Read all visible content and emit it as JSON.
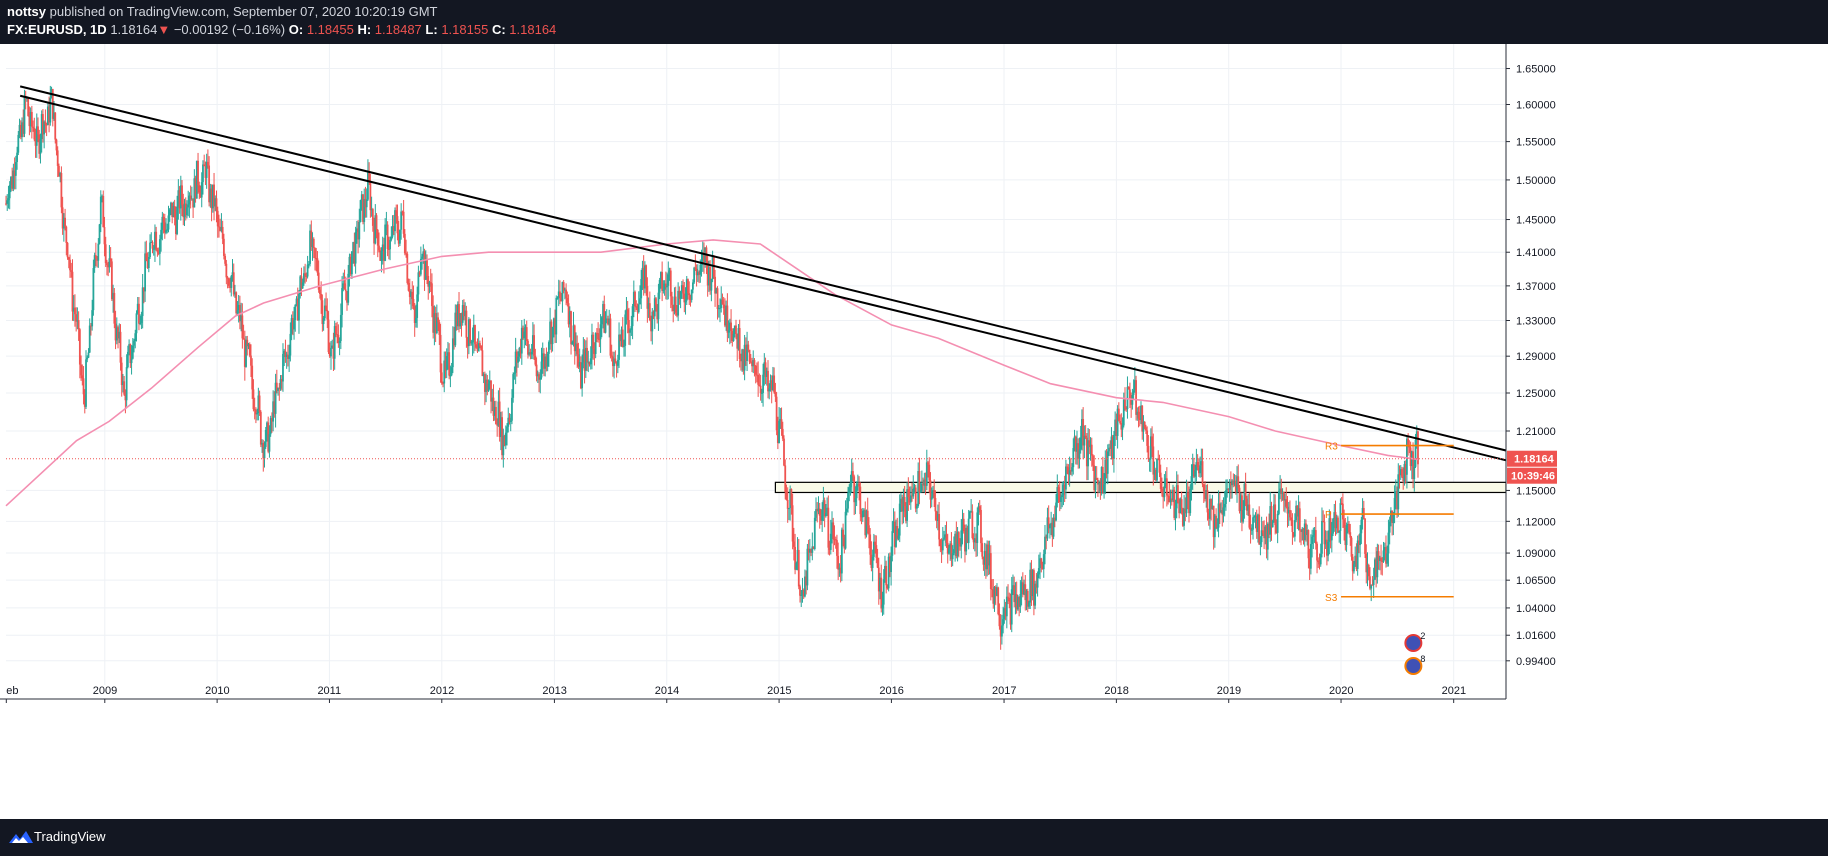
{
  "header": {
    "author": "nottsy",
    "published": "published on TradingView.com, September 07, 2020 10:20:19 GMT",
    "symbol": "FX:EURUSD, 1D",
    "last": "1.18164",
    "change_arrow": "▼",
    "change": "−0.00192 (−0.16%)",
    "o_label": "O:",
    "o_value": "1.18455",
    "h_label": "H:",
    "h_value": "1.18487",
    "l_label": "L:",
    "l_value": "1.18155",
    "c_label": "C:",
    "c_value": "1.18164"
  },
  "footer": {
    "brand": "TradingView",
    "logo_icon": "tradingview-logo-icon"
  },
  "colors": {
    "background_dark": "#131722",
    "up_candle": "#26a69a",
    "down_candle": "#ef5350",
    "moving_average": "#f48fb1",
    "pivot_lines": "#f57c00",
    "trendline": "#000000",
    "price_label_bg": "#ef5350"
  },
  "chart_data": {
    "type": "candlestick",
    "symbol": "FX:EURUSD",
    "interval": "1D",
    "y_scale": "log",
    "ylim": [
      0.982,
      1.685
    ],
    "xlim": [
      "2008-02-15",
      "2021-06-20"
    ],
    "grid": true,
    "x_ticks": [
      "eb",
      "2009",
      "2010",
      "2011",
      "2012",
      "2013",
      "2014",
      "2015",
      "2016",
      "2017",
      "2018",
      "2019",
      "2020",
      "2021"
    ],
    "x_tick_dates": [
      "2008-02-16",
      "2009-01-01",
      "2010-01-01",
      "2011-01-01",
      "2012-01-01",
      "2013-01-01",
      "2014-01-01",
      "2015-01-01",
      "2016-01-01",
      "2017-01-01",
      "2018-01-01",
      "2019-01-01",
      "2020-01-01",
      "2021-01-01"
    ],
    "y_ticks": [
      "1.65000",
      "1.60000",
      "1.55000",
      "1.50000",
      "1.45000",
      "1.41000",
      "1.37000",
      "1.33000",
      "1.29000",
      "1.25000",
      "1.21000",
      "1.15000",
      "1.12000",
      "1.09000",
      "1.06500",
      "1.04000",
      "1.01600",
      "0.99400"
    ],
    "price_path": [
      [
        "2008-02-15",
        1.47
      ],
      [
        "2008-04-22",
        1.6
      ],
      [
        "2008-05-20",
        1.55
      ],
      [
        "2008-07-15",
        1.6
      ],
      [
        "2008-08-15",
        1.47
      ],
      [
        "2008-10-27",
        1.24
      ],
      [
        "2008-12-18",
        1.47
      ],
      [
        "2009-03-04",
        1.25
      ],
      [
        "2009-06-01",
        1.42
      ],
      [
        "2009-11-25",
        1.51
      ],
      [
        "2010-06-07",
        1.19
      ],
      [
        "2010-11-04",
        1.42
      ],
      [
        "2011-01-10",
        1.29
      ],
      [
        "2011-05-04",
        1.49
      ],
      [
        "2011-06-15",
        1.41
      ],
      [
        "2011-08-26",
        1.45
      ],
      [
        "2011-10-04",
        1.32
      ],
      [
        "2011-10-27",
        1.42
      ],
      [
        "2012-01-13",
        1.26
      ],
      [
        "2012-02-29",
        1.35
      ],
      [
        "2012-07-24",
        1.2
      ],
      [
        "2012-09-17",
        1.32
      ],
      [
        "2012-11-13",
        1.27
      ],
      [
        "2013-02-01",
        1.37
      ],
      [
        "2013-03-27",
        1.27
      ],
      [
        "2013-06-19",
        1.34
      ],
      [
        "2013-07-09",
        1.28
      ],
      [
        "2013-10-25",
        1.38
      ],
      [
        "2013-11-07",
        1.33
      ],
      [
        "2014-01-02",
        1.38
      ],
      [
        "2014-02-03",
        1.35
      ],
      [
        "2014-05-08",
        1.4
      ],
      [
        "2014-09-05",
        1.29
      ],
      [
        "2014-12-15",
        1.25
      ],
      [
        "2015-03-16",
        1.045
      ],
      [
        "2015-05-15",
        1.14
      ],
      [
        "2015-07-20",
        1.08
      ],
      [
        "2015-08-24",
        1.17
      ],
      [
        "2015-12-03",
        1.055
      ],
      [
        "2016-02-11",
        1.14
      ],
      [
        "2016-05-03",
        1.16
      ],
      [
        "2016-06-24",
        1.09
      ],
      [
        "2016-10-05",
        1.12
      ],
      [
        "2016-12-20",
        1.035
      ],
      [
        "2017-01-03",
        1.04
      ],
      [
        "2017-04-10",
        1.06
      ],
      [
        "2017-05-15",
        1.1
      ],
      [
        "2017-09-08",
        1.21
      ],
      [
        "2017-11-07",
        1.155
      ],
      [
        "2018-02-16",
        1.255
      ],
      [
        "2018-05-29",
        1.153
      ],
      [
        "2018-08-15",
        1.13
      ],
      [
        "2018-09-24",
        1.18
      ],
      [
        "2018-11-12",
        1.12
      ],
      [
        "2019-01-10",
        1.155
      ],
      [
        "2019-04-26",
        1.11
      ],
      [
        "2019-06-25",
        1.14
      ],
      [
        "2019-10-01",
        1.09
      ],
      [
        "2020-01-02",
        1.124
      ],
      [
        "2020-02-20",
        1.078
      ],
      [
        "2020-03-09",
        1.149
      ],
      [
        "2020-03-23",
        1.064
      ],
      [
        "2020-05-22",
        1.09
      ],
      [
        "2020-07-31",
        1.19
      ],
      [
        "2020-08-20",
        1.18
      ],
      [
        "2020-09-01",
        1.201
      ],
      [
        "2020-09-07",
        1.18164
      ]
    ],
    "moving_average": {
      "color": "#f48fb1",
      "points": [
        [
          "2008-02-15",
          1.135
        ],
        [
          "2008-10-01",
          1.2
        ],
        [
          "2009-01-15",
          1.22
        ],
        [
          "2009-06-01",
          1.255
        ],
        [
          "2009-11-01",
          1.3
        ],
        [
          "2010-03-01",
          1.335
        ],
        [
          "2010-06-01",
          1.35
        ],
        [
          "2010-12-01",
          1.37
        ],
        [
          "2011-07-01",
          1.39
        ],
        [
          "2012-01-01",
          1.405
        ],
        [
          "2012-06-01",
          1.41
        ],
        [
          "2013-01-01",
          1.41
        ],
        [
          "2013-06-01",
          1.41
        ],
        [
          "2014-01-01",
          1.42
        ],
        [
          "2014-06-01",
          1.425
        ],
        [
          "2014-11-01",
          1.42
        ],
        [
          "2015-03-01",
          1.39
        ],
        [
          "2015-07-01",
          1.36
        ],
        [
          "2016-01-01",
          1.325
        ],
        [
          "2016-06-01",
          1.31
        ],
        [
          "2017-01-01",
          1.28
        ],
        [
          "2017-06-01",
          1.26
        ],
        [
          "2018-01-01",
          1.245
        ],
        [
          "2018-06-01",
          1.24
        ],
        [
          "2019-01-01",
          1.225
        ],
        [
          "2019-06-01",
          1.21
        ],
        [
          "2020-01-01",
          1.195
        ],
        [
          "2020-06-01",
          1.185
        ],
        [
          "2020-09-07",
          1.181
        ]
      ]
    },
    "trendlines": [
      {
        "from": [
          "2008-04-01",
          1.625
        ],
        "to": [
          "2021-06-20",
          1.19
        ]
      },
      {
        "from": [
          "2008-04-01",
          1.612
        ],
        "to": [
          "2021-06-20",
          1.18
        ]
      }
    ],
    "zone": {
      "from": "2014-12-20",
      "to": "2021-06-20",
      "top": 1.158,
      "bottom": 1.148
    },
    "pivot_levels": [
      {
        "label": "R3",
        "price": 1.195,
        "from": "2020-01-01",
        "to": "2021-01-01"
      },
      {
        "label": "P",
        "price": 1.127,
        "from": "2020-01-01",
        "to": "2021-01-01"
      },
      {
        "label": "S3",
        "price": 1.05,
        "from": "2020-01-01",
        "to": "2021-01-01"
      }
    ],
    "last_price": {
      "value": 1.18164,
      "label": "1.18164",
      "countdown": "10:39:46"
    },
    "event_markers": [
      {
        "date": "2020-08-10",
        "count": "2"
      },
      {
        "date": "2020-08-10",
        "count": "8"
      }
    ]
  }
}
